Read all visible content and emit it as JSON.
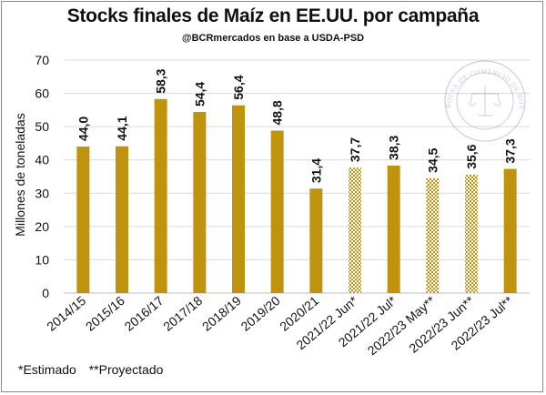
{
  "chart_data": {
    "type": "bar",
    "title": "Stocks finales de Maíz en EE.UU. por campaña",
    "subtitle": "@BCRmercados en base a USDA-PSD",
    "xlabel": "",
    "ylabel": "Millones de toneladas",
    "ylim": [
      0,
      70
    ],
    "yticks": [
      "0",
      "10",
      "20",
      "30",
      "40",
      "50",
      "60",
      "70"
    ],
    "categories": [
      "2014/15",
      "2015/16",
      "2016/17",
      "2017/18",
      "2018/19",
      "2019/20",
      "2020/21",
      "2021/22 Jun*",
      "2021/22 Jul*",
      "2022/23 May**",
      "2022/23 Jun**",
      "2022/23 Jul**"
    ],
    "values": [
      44.0,
      44.1,
      58.3,
      54.4,
      56.4,
      48.8,
      31.4,
      37.7,
      38.3,
      34.5,
      35.6,
      37.3
    ],
    "value_labels": [
      "44,0",
      "44,1",
      "58,3",
      "54,4",
      "56,4",
      "48,8",
      "31,4",
      "37,7",
      "38,3",
      "34,5",
      "35,6",
      "37,3"
    ],
    "patterned": [
      false,
      false,
      false,
      false,
      false,
      false,
      false,
      true,
      false,
      true,
      true,
      false
    ],
    "grid": true,
    "bar_color": "#c0930f",
    "pattern_color": "#c0930f",
    "grid_color": "#d9d9d9"
  },
  "footnotes": {
    "estimated": "*Estimado",
    "projected": "**Proyectado"
  },
  "watermark": {
    "text": "BOLSA DE COMERCIO DE ROSARIO"
  }
}
